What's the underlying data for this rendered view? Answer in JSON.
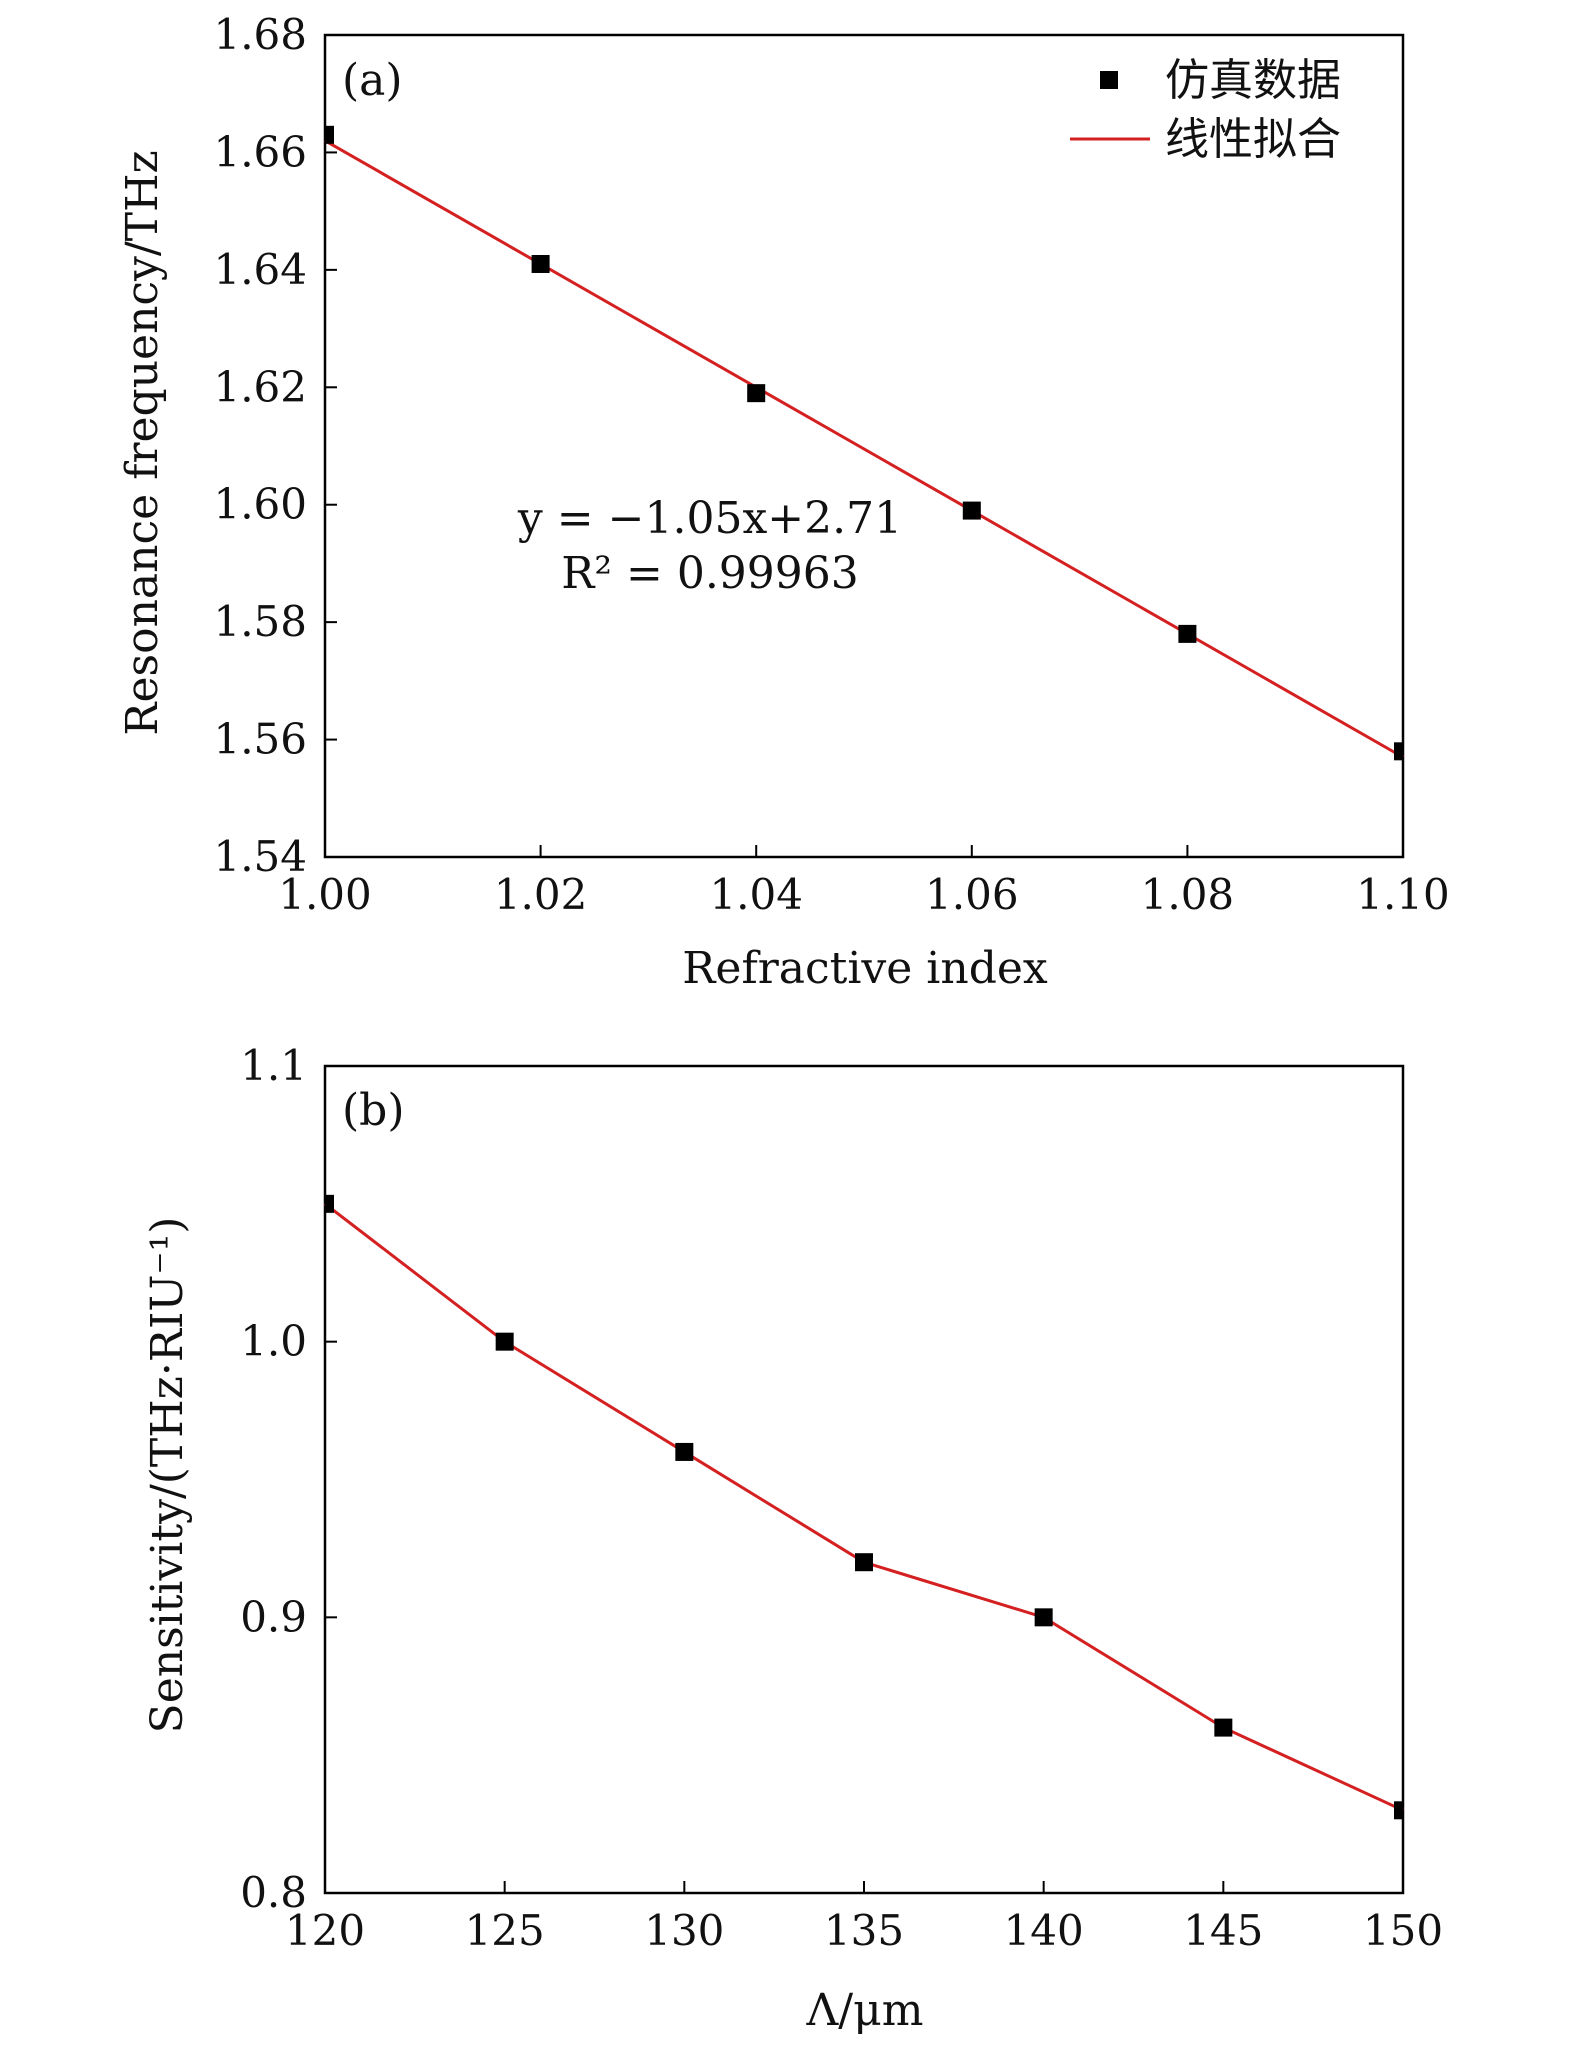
{
  "colors": {
    "fit_line": "#d42020",
    "marker": "#000000",
    "axes": "#000000"
  },
  "chart_data": [
    {
      "type": "scatter",
      "panel_label": "(a)",
      "title": "",
      "xlabel": "Refractive index",
      "ylabel": "Resonance frequency/THz",
      "xlim": [
        1.0,
        1.1
      ],
      "ylim": [
        1.54,
        1.68
      ],
      "xticks": [
        "1.00",
        "1.02",
        "1.04",
        "1.06",
        "1.08",
        "1.10"
      ],
      "yticks": [
        "1.54",
        "1.56",
        "1.58",
        "1.60",
        "1.62",
        "1.64",
        "1.66",
        "1.68"
      ],
      "grid": false,
      "legend": {
        "position": "top-right",
        "entries": [
          "仿真数据",
          "线性拟合"
        ]
      },
      "series": [
        {
          "name": "仿真数据",
          "marker": "square",
          "x": [
            1.0,
            1.02,
            1.04,
            1.06,
            1.08,
            1.1
          ],
          "y": [
            1.663,
            1.641,
            1.619,
            1.599,
            1.578,
            1.558
          ]
        },
        {
          "name": "线性拟合",
          "kind": "line",
          "x": [
            1.0,
            1.1
          ],
          "y": [
            1.662,
            1.557
          ]
        }
      ],
      "annotation": {
        "line1": "y = −1.05x+2.71",
        "line2": "R² = 0.99963"
      }
    },
    {
      "type": "line",
      "panel_label": "(b)",
      "title": "",
      "xlabel": "Λ/μm",
      "ylabel": "Sensitivity/(THz·RIU⁻¹)",
      "xlim": [
        120,
        150
      ],
      "ylim": [
        0.8,
        1.1
      ],
      "xticks": [
        "120",
        "125",
        "130",
        "135",
        "140",
        "145",
        "150"
      ],
      "yticks": [
        "0.8",
        "0.9",
        "1.0",
        "1.1"
      ],
      "grid": false,
      "series": [
        {
          "name": "",
          "marker": "square",
          "x": [
            120,
            125,
            130,
            135,
            140,
            145,
            150
          ],
          "y": [
            1.05,
            1.0,
            0.96,
            0.92,
            0.9,
            0.86,
            0.83
          ]
        }
      ]
    }
  ]
}
